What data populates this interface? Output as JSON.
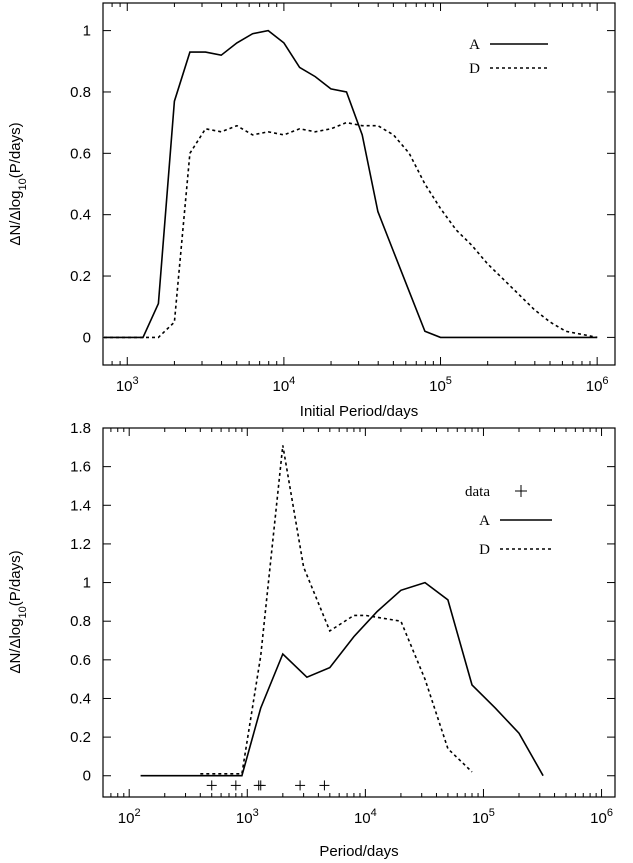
{
  "chart_data": [
    {
      "type": "line",
      "xlabel": "Initial Period/days",
      "ylabel": "ΔN/Δlog10(P/days)",
      "xscale": "log",
      "xlim": [
        700,
        1300000
      ],
      "ylim": [
        -0.09,
        1.09
      ],
      "xticks": [
        {
          "value": 1000,
          "base": "10",
          "exp": "3"
        },
        {
          "value": 10000,
          "base": "10",
          "exp": "4"
        },
        {
          "value": 100000,
          "base": "10",
          "exp": "5"
        },
        {
          "value": 1000000,
          "base": "10",
          "exp": "6"
        }
      ],
      "yticks": [
        0,
        0.2,
        0.4,
        0.6,
        0.8,
        1
      ],
      "ytick_labels": [
        "0",
        "0.2",
        "0.4",
        "0.6",
        "0.8",
        "1"
      ],
      "grid": false,
      "legend_position": "top-right",
      "series": [
        {
          "name": "A",
          "style": "solid",
          "x": [
            710,
            1260,
            1580,
            2000,
            2510,
            3160,
            3980,
            5010,
            6310,
            7940,
            10000,
            12590,
            15850,
            19950,
            25120,
            31620,
            39810,
            50120,
            63100,
            79430,
            100000,
            1000000
          ],
          "y": [
            0,
            0,
            0.11,
            0.77,
            0.93,
            0.93,
            0.92,
            0.96,
            0.99,
            1.0,
            0.96,
            0.88,
            0.85,
            0.81,
            0.8,
            0.66,
            0.41,
            0.28,
            0.15,
            0.02,
            0,
            0
          ]
        },
        {
          "name": "D",
          "style": "dashed",
          "x": [
            710,
            1580,
            2000,
            2510,
            3160,
            3980,
            5010,
            6310,
            7940,
            10000,
            12590,
            15850,
            19950,
            25120,
            31620,
            39810,
            50120,
            63100,
            79430,
            100000,
            125900,
            158500,
            199500,
            251200,
            316200,
            398100,
            501200,
            631000,
            794300,
            1000000
          ],
          "y": [
            0,
            0,
            0.05,
            0.6,
            0.68,
            0.67,
            0.69,
            0.66,
            0.67,
            0.66,
            0.68,
            0.67,
            0.68,
            0.7,
            0.69,
            0.69,
            0.66,
            0.6,
            0.5,
            0.42,
            0.35,
            0.3,
            0.24,
            0.19,
            0.14,
            0.09,
            0.05,
            0.02,
            0.01,
            0
          ]
        }
      ]
    },
    {
      "type": "line",
      "xlabel": "Period/days",
      "ylabel": "ΔN/Δlog10(P/days)",
      "xscale": "log",
      "xlim": [
        60,
        1300000
      ],
      "ylim": [
        -0.11,
        1.8
      ],
      "xticks": [
        {
          "value": 100,
          "base": "10",
          "exp": "2"
        },
        {
          "value": 1000,
          "base": "10",
          "exp": "3"
        },
        {
          "value": 10000,
          "base": "10",
          "exp": "4"
        },
        {
          "value": 100000,
          "base": "10",
          "exp": "5"
        },
        {
          "value": 1000000,
          "base": "10",
          "exp": "6"
        }
      ],
      "yticks": [
        0,
        0.2,
        0.4,
        0.6,
        0.8,
        1,
        1.2,
        1.4,
        1.6,
        1.8
      ],
      "ytick_labels": [
        "0",
        "0.2",
        "0.4",
        "0.6",
        "0.8",
        "1",
        "1.2",
        "1.4",
        "1.6",
        "1.8"
      ],
      "grid": false,
      "legend_position": "top-right",
      "series": [
        {
          "name": "data",
          "style": "points",
          "x": [
            500,
            800,
            1250,
            1300,
            2800,
            4500
          ],
          "y": [
            -0.05,
            -0.05,
            -0.05,
            -0.05,
            -0.05,
            -0.05
          ]
        },
        {
          "name": "A",
          "style": "solid",
          "x": [
            125,
            250,
            500,
            900,
            1300,
            2000,
            3200,
            5000,
            8000,
            12600,
            20000,
            32000,
            50000,
            80000,
            126000,
            200000,
            320000
          ],
          "y": [
            0,
            0,
            0,
            0,
            0.35,
            0.63,
            0.51,
            0.56,
            0.72,
            0.85,
            0.96,
            1.0,
            0.91,
            0.47,
            0.35,
            0.22,
            0.0
          ]
        },
        {
          "name": "D",
          "style": "dashed",
          "x": [
            400,
            900,
            1300,
            2000,
            3000,
            5000,
            8000,
            10000,
            12600,
            20000,
            32000,
            50000,
            80000
          ],
          "y": [
            0.01,
            0.01,
            0.62,
            1.71,
            1.08,
            0.75,
            0.83,
            0.83,
            0.82,
            0.8,
            0.5,
            0.14,
            0.02
          ]
        }
      ]
    }
  ]
}
